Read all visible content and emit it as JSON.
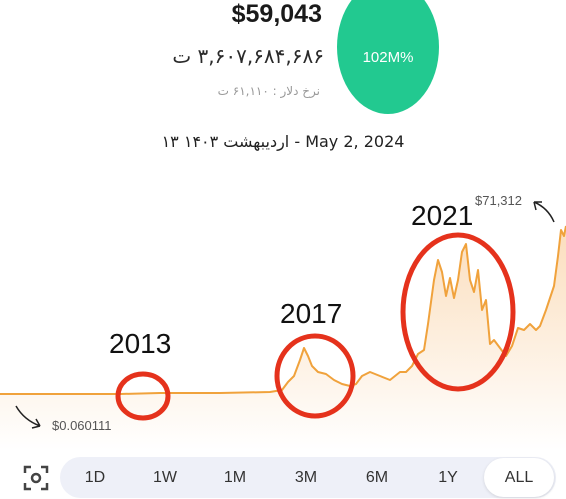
{
  "header": {
    "price_usd": "$59,043",
    "price_toman": "۳,۶۰۷,۶۸۴,۶۸۶ ت",
    "dollar_rate": "نرخ دلار :  ۶۱,۱۱۰ ت",
    "change_badge": "102M%",
    "date": "۱۳ اردیبهشت ۱۴۰۳ - May 2, 2024"
  },
  "chart": {
    "max_label": "$71,312",
    "min_label": "$0.060111",
    "annotations": [
      "2013",
      "2017",
      "2021"
    ],
    "line_color": "#f0a23c",
    "highlight_color": "#e5321c",
    "badge_color": "#22c990"
  },
  "chart_data": {
    "type": "area",
    "title": "",
    "xlabel": "",
    "ylabel": "",
    "y_scale": "linear",
    "annotations": [
      {
        "text": "$71,312",
        "kind": "max"
      },
      {
        "text": "$0.060111",
        "kind": "min"
      },
      {
        "text": "2013",
        "kind": "highlight"
      },
      {
        "text": "2017",
        "kind": "highlight"
      },
      {
        "text": "2021",
        "kind": "highlight"
      }
    ]
  },
  "range_selector": {
    "options": [
      "1D",
      "1W",
      "1M",
      "3M",
      "6M",
      "1Y",
      "ALL"
    ],
    "selected": "ALL"
  },
  "icons": {
    "focus": "focus-target-icon"
  }
}
